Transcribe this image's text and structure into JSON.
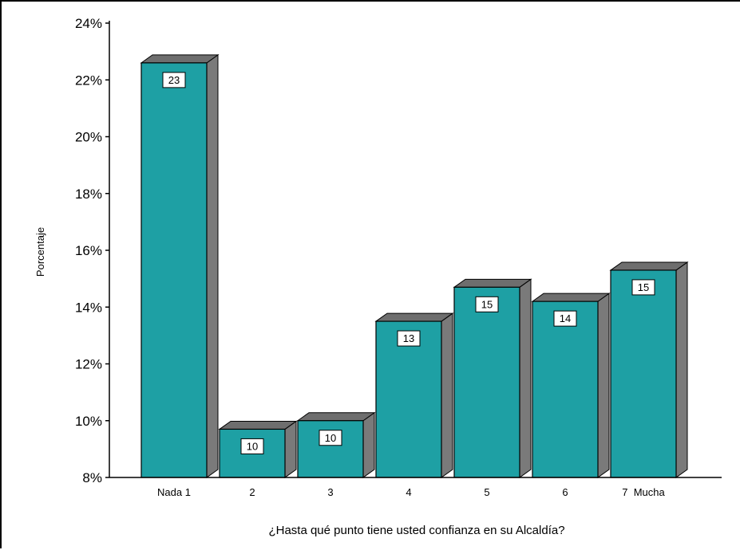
{
  "chart_data": {
    "type": "bar",
    "title": "",
    "xlabel": "¿Hasta qué punto tiene usted confianza en su Alcaldía?",
    "ylabel": "Porcentaje",
    "categories": [
      "Nada 1",
      "2",
      "3",
      "4",
      "5",
      "6",
      "7  Mucha"
    ],
    "values": [
      22.6,
      9.7,
      10.0,
      13.5,
      14.7,
      14.2,
      15.3
    ],
    "data_labels": [
      "23",
      "10",
      "10",
      "13",
      "15",
      "14",
      "15"
    ],
    "ylim": [
      8,
      24
    ],
    "yticks": [
      "8%",
      "10%",
      "12%",
      "14%",
      "16%",
      "18%",
      "20%",
      "22%",
      "24%"
    ],
    "ytick_values": [
      8,
      10,
      12,
      14,
      16,
      18,
      20,
      22,
      24
    ],
    "grid": false,
    "legend": "none",
    "style": "3d",
    "colors": {
      "bar_front": "#1ea0a4",
      "bar_top": "#6e6e6e",
      "bar_side": "#7a7a7a",
      "outline": "#000000"
    }
  }
}
